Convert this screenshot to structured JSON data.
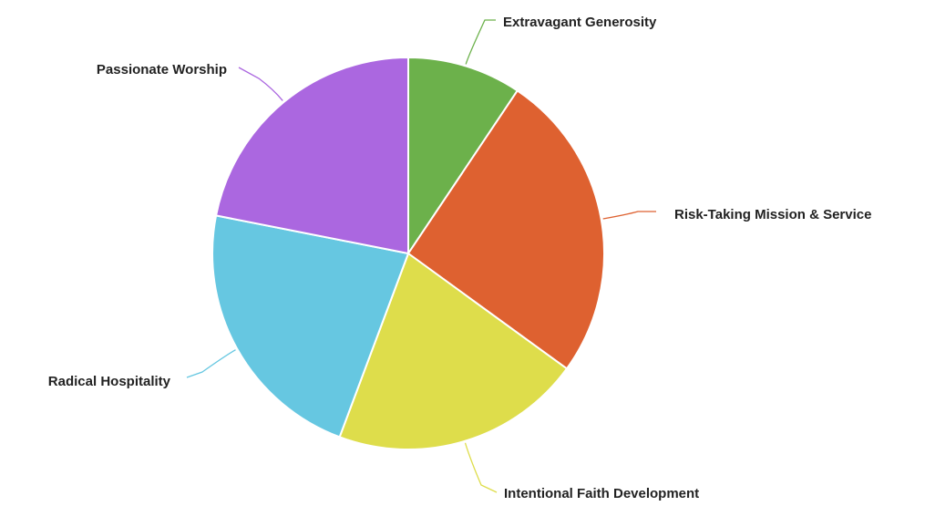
{
  "chart_data": {
    "type": "pie",
    "title": "",
    "slices": [
      {
        "label": "Extravagant Generosity",
        "value": 9.4,
        "color": "#6cb14b"
      },
      {
        "label": "Risk-Taking Mission & Service",
        "value": 25.6,
        "color": "#de6130"
      },
      {
        "label": "Intentional Faith Development",
        "value": 20.7,
        "color": "#dedd4b"
      },
      {
        "label": "Radical Hospitality",
        "value": 22.4,
        "color": "#66c7e1"
      },
      {
        "label": "Passionate Worship",
        "value": 21.9,
        "color": "#ab67e0"
      }
    ],
    "legend": "none",
    "labels": "outside-with-leader-lines"
  }
}
